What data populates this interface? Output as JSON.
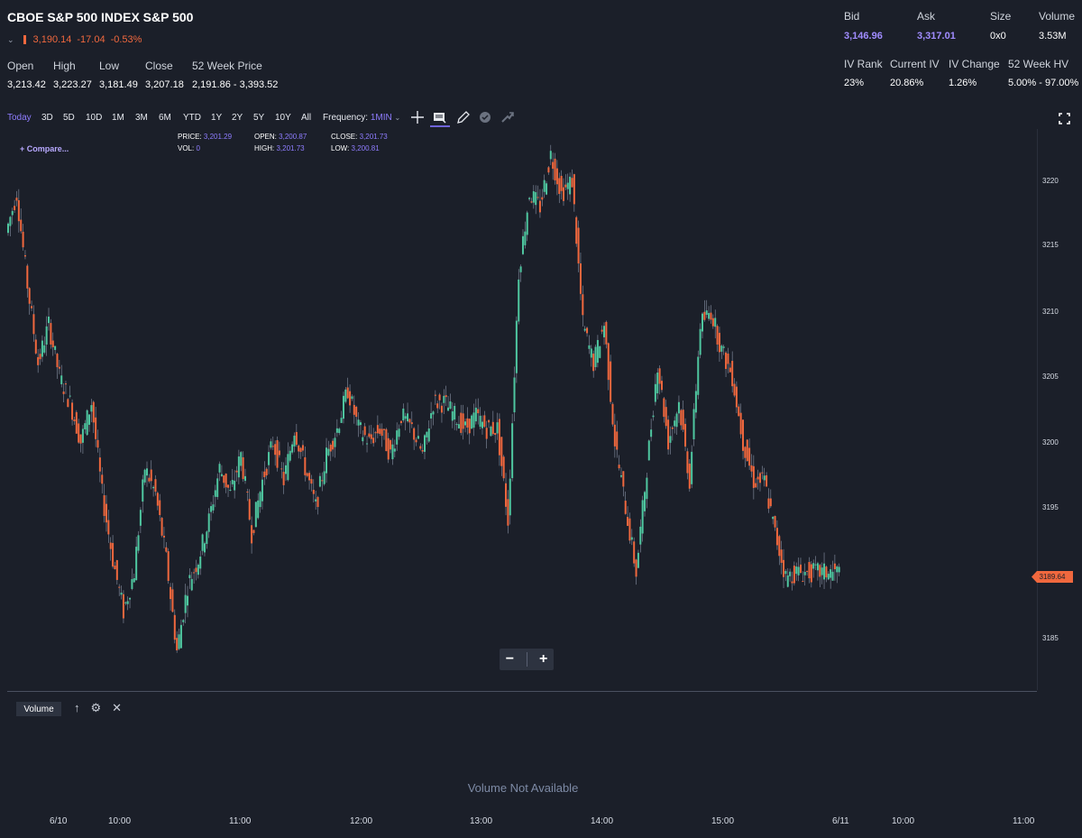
{
  "header": {
    "title": "CBOE S&P 500 INDEX S&P 500",
    "price": "3,190.14",
    "change": "-17.04",
    "change_pct": "-0.53%",
    "stats": [
      {
        "label": "Open",
        "value": "3,213.42"
      },
      {
        "label": "High",
        "value": "3,223.27"
      },
      {
        "label": "Low",
        "value": "3,181.49"
      },
      {
        "label": "Close",
        "value": "3,207.18"
      },
      {
        "label": "52 Week Price",
        "value": "2,191.86 - 3,393.52"
      }
    ],
    "quote_stats": [
      {
        "label": "Bid",
        "value": "3,146.96"
      },
      {
        "label": "Ask",
        "value": "3,317.01"
      },
      {
        "label": "Size",
        "value": "0x0"
      },
      {
        "label": "Volume",
        "value": "3.53M"
      }
    ],
    "iv_stats": [
      {
        "label": "IV Rank",
        "value": "23%"
      },
      {
        "label": "Current IV",
        "value": "20.86%"
      },
      {
        "label": "IV Change",
        "value": "1.26%"
      },
      {
        "label": "52 Week HV",
        "value": "5.00% - 97.00%"
      }
    ]
  },
  "toolbar": {
    "ranges": [
      "Today",
      "3D",
      "5D",
      "10D",
      "1M",
      "3M",
      "6M",
      "YTD",
      "1Y",
      "2Y",
      "5Y",
      "10Y",
      "All"
    ],
    "active_range": "Today",
    "frequency_label": "Frequency:",
    "frequency_value": "1MIN"
  },
  "chart_info": {
    "price_label": "PRICE:",
    "price_value": "3,201.29",
    "open_label": "OPEN:",
    "open_value": "3,200.87",
    "close_label": "CLOSE:",
    "close_value": "3,201.73",
    "vol_label": "VOL:",
    "vol_value": "0",
    "high_label": "HIGH:",
    "high_value": "3,201.73",
    "low_label": "LOW:",
    "low_value": "3,200.81",
    "compare_label": "+ Compare..."
  },
  "volume_panel": {
    "tab_label": "Volume",
    "message": "Volume Not Available"
  },
  "colors": {
    "up": "#4fc7a0",
    "down": "#f0683e",
    "accent": "#8f7dff",
    "background": "#1b1f29"
  },
  "chart_data": {
    "type": "line",
    "x_ticks": [
      "6/10",
      "10:00",
      "11:00",
      "12:00",
      "13:00",
      "14:00",
      "15:00",
      "6/11",
      "10:00",
      "11:00"
    ],
    "y_ticks": [
      "3220",
      "3215",
      "3210",
      "3205",
      "3200",
      "3195",
      "3185"
    ],
    "ylim": [
      3181,
      3223
    ],
    "last_price": "3189.64",
    "series": [
      {
        "x": [
          "9:30",
          "9:35",
          "9:40",
          "9:45",
          "9:50",
          "9:55",
          "10:00",
          "10:05",
          "10:10",
          "10:15",
          "10:20",
          "10:25",
          "10:30",
          "10:35",
          "10:40",
          "10:45",
          "10:50",
          "10:55",
          "11:00",
          "11:05",
          "11:10",
          "11:15",
          "11:20",
          "11:25",
          "11:30",
          "11:35",
          "11:40",
          "11:45",
          "11:50",
          "11:55",
          "12:00",
          "12:05",
          "12:10",
          "12:15",
          "12:20",
          "12:25",
          "12:30",
          "12:35",
          "12:40",
          "12:45",
          "12:50",
          "12:55",
          "13:00",
          "13:05",
          "13:10",
          "13:15",
          "13:20",
          "13:25",
          "13:30",
          "13:35",
          "13:40",
          "13:45",
          "13:50",
          "13:55",
          "14:00",
          "14:05",
          "14:10",
          "14:15",
          "14:20",
          "14:25",
          "14:30",
          "14:35",
          "14:40",
          "14:45",
          "14:50",
          "14:55",
          "15:00",
          "15:05",
          "15:10",
          "15:15",
          "15:20",
          "15:25",
          "15:30",
          "15:35",
          "15:40",
          "15:45",
          "15:50",
          "15:55",
          "16:00"
        ],
        "values": [
          3216,
          3219,
          3212,
          3206,
          3209,
          3205,
          3203,
          3200,
          3203,
          3196,
          3191,
          3187,
          3190,
          3198,
          3196,
          3191,
          3184,
          3189,
          3191,
          3194,
          3198,
          3196,
          3199,
          3193,
          3197,
          3200,
          3197,
          3201,
          3198,
          3195,
          3199,
          3201,
          3204,
          3201,
          3200,
          3201,
          3199,
          3202,
          3201,
          3199,
          3203,
          3203,
          3202,
          3201,
          3202,
          3201,
          3201,
          3194,
          3213,
          3219,
          3218,
          3222,
          3219,
          3220,
          3209,
          3206,
          3209,
          3200,
          3195,
          3190,
          3198,
          3206,
          3200,
          3203,
          3197,
          3209,
          3210,
          3207,
          3205,
          3200,
          3197,
          3197,
          3193,
          3189.64,
          3190,
          3190,
          3190,
          3190,
          3190
        ]
      }
    ]
  }
}
